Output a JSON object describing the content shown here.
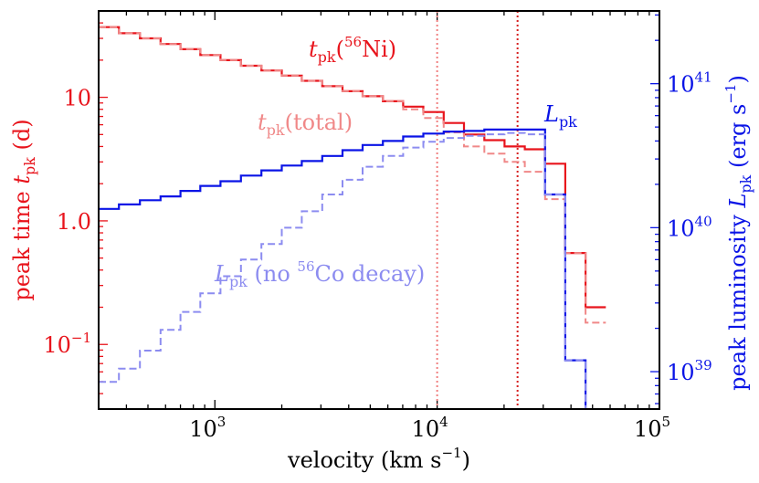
{
  "chart_data": {
    "type": "line",
    "style": "step",
    "x_scale": "log",
    "xlim": [
      300,
      100000
    ],
    "ylim_left": [
      0.03,
      50
    ],
    "ylim_right": [
      5.5e+38,
      3.2e+41
    ],
    "xlabel": {
      "main": "velocity (km s",
      "sup": "−1",
      "tail": ")"
    },
    "ylabel_left": {
      "pre": "peak time ",
      "var": "t",
      "sub": "pk",
      "post": " (d)"
    },
    "ylabel_right": {
      "pre": "peak luminosity ",
      "var": "L",
      "sub": "pk",
      "post": " (erg s",
      "sup": "−1",
      "tail": ")"
    },
    "x_ticks": [
      {
        "value": 1000,
        "base": "10",
        "exp": "3"
      },
      {
        "value": 10000,
        "base": "10",
        "exp": "4"
      },
      {
        "value": 100000,
        "base": "10",
        "exp": "5"
      }
    ],
    "left_ticks": [
      {
        "value": 0.1,
        "base": "10",
        "exp": "−1"
      },
      {
        "value": 1,
        "base": "10",
        "exp": "0",
        "label": "1.0"
      },
      {
        "value": 10,
        "base": "10",
        "exp": "1",
        "label": "10"
      }
    ],
    "right_ticks": [
      {
        "value": 1e+39,
        "base": "10",
        "exp": "39"
      },
      {
        "value": 1e+40,
        "base": "10",
        "exp": "40"
      },
      {
        "value": 1e+41,
        "base": "10",
        "exp": "41"
      }
    ],
    "vlines": [
      {
        "x": 10000,
        "color": "#f08080",
        "style": "dotted"
      },
      {
        "x": 23000,
        "color": "#d62020",
        "style": "dotted"
      }
    ],
    "bin_edges": [
      300,
      370,
      460,
      570,
      700,
      860,
      1060,
      1310,
      1620,
      2000,
      2460,
      3040,
      3750,
      4620,
      5700,
      7030,
      8670,
      10700,
      13200,
      16300,
      20100,
      24800,
      30600,
      37700,
      46500,
      57400
    ],
    "series": [
      {
        "name": "t_pk(56Ni)",
        "axis": "left",
        "color": "#e8141c",
        "dash": false,
        "width": 2.2,
        "values": [
          37,
          33,
          30,
          27,
          24.5,
          22,
          20,
          18,
          16.5,
          15,
          13.6,
          12.3,
          11.2,
          10.2,
          9.3,
          8.4,
          7.6,
          6.2,
          5.0,
          4.5,
          4.0,
          3.8,
          2.9,
          0.55,
          0.2,
          0.001
        ]
      },
      {
        "name": "t_pk(total)",
        "axis": "left",
        "color": "#f08888",
        "dash": true,
        "width": 2.0,
        "values": [
          37,
          33,
          30,
          27,
          24.5,
          22,
          20,
          18,
          16.5,
          15,
          13.6,
          12.3,
          11.2,
          10.2,
          9.3,
          8.0,
          6.8,
          5.2,
          4.0,
          3.5,
          3.0,
          2.5,
          1.5,
          0.55,
          0.15,
          0.001
        ]
      },
      {
        "name": "L_pk",
        "axis": "right",
        "color": "#0a14e6",
        "dash": false,
        "width": 2.2,
        "values": [
          1.35e+40,
          1.45e+40,
          1.55e+40,
          1.65e+40,
          1.8e+40,
          1.95e+40,
          2.1e+40,
          2.3e+40,
          2.5e+40,
          2.7e+40,
          2.9e+40,
          3.15e+40,
          3.45e+40,
          3.75e+40,
          4e+40,
          4.3e+40,
          4.5e+40,
          4.65e+40,
          4.7e+40,
          4.8e+40,
          4.8e+40,
          4.8e+40,
          1.7e+40,
          1.2e+39,
          1e+37,
          1e+37
        ]
      },
      {
        "name": "L_pk (no 56Co decay)",
        "axis": "right",
        "color": "#8c8cf0",
        "dash": true,
        "width": 2.0,
        "values": [
          8.5e+38,
          1.05e+39,
          1.4e+39,
          1.95e+39,
          2.6e+39,
          3.5e+39,
          4.6e+39,
          6e+39,
          7.7e+39,
          1e+40,
          1.3e+40,
          1.7e+40,
          2.15e+40,
          2.65e+40,
          3.15e+40,
          3.6e+40,
          3.95e+40,
          4.2e+40,
          4.35e+40,
          4.45e+40,
          4.55e+40,
          4.45e+40,
          1.7e+40,
          1.2e+39,
          1e+37,
          1e+37
        ]
      }
    ],
    "annotations": [
      {
        "id": "ni",
        "var": "t",
        "sub": "pk",
        "open": "(",
        "sup": "56",
        "main": "Ni",
        "close": ")",
        "color": "#e8141c"
      },
      {
        "id": "total",
        "var": "t",
        "sub": "pk",
        "open": "(",
        "main": "total",
        "close": ")",
        "color": "#f08888"
      },
      {
        "id": "lpk",
        "var": "L",
        "sub": "pk",
        "color": "#0a14e6"
      },
      {
        "id": "noco",
        "var": "L",
        "sub": "pk",
        "pre": " (no ",
        "sup": "56",
        "main": "Co decay",
        "close": ")",
        "color": "#8c8cf0"
      }
    ]
  }
}
